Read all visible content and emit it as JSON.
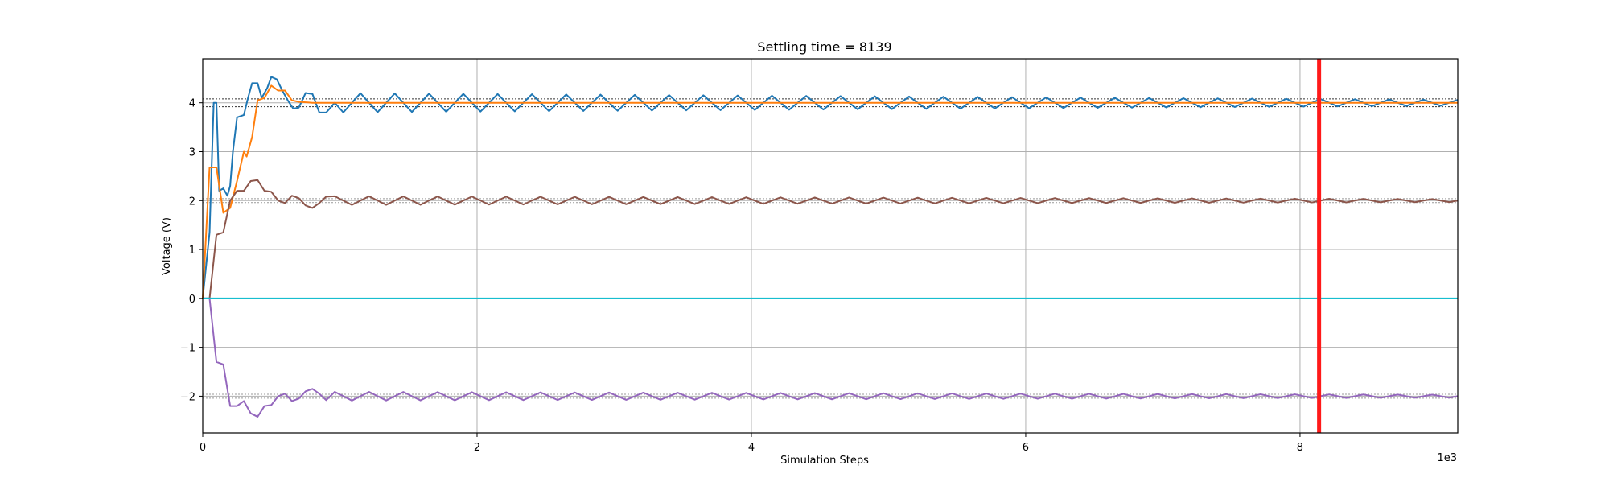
{
  "chart_data": {
    "type": "line",
    "title": "Settling time = 8139",
    "xlabel": "Simulation Steps",
    "ylabel": "Voltage (V)",
    "x_offset_label": "1e3",
    "xlim": [
      0,
      9.15
    ],
    "ylim": [
      -2.75,
      4.9
    ],
    "x_ticks": [
      0,
      2,
      4,
      6,
      8
    ],
    "x_tick_labels": [
      "0",
      "2",
      "4",
      "6",
      "8"
    ],
    "y_ticks": [
      -2,
      -1,
      0,
      1,
      2,
      3,
      4
    ],
    "y_tick_labels": [
      "−2",
      "−1",
      "0",
      "1",
      "2",
      "3",
      "4"
    ],
    "grid": true,
    "legend": "none",
    "settling_marker": {
      "x": 8.139,
      "color": "#ff1a1a"
    },
    "tolerance_bands": [
      {
        "center": 4,
        "lower": 3.92,
        "upper": 4.08,
        "color": "#333333"
      },
      {
        "center": 2,
        "lower": 1.96,
        "upper": 2.04,
        "color": "#999999"
      },
      {
        "center": -2,
        "lower": -2.04,
        "upper": -1.96,
        "color": "#999999"
      }
    ],
    "series": [
      {
        "color": "#1f77b4",
        "points": [
          [
            0,
            0
          ],
          [
            0.05,
            1.35
          ],
          [
            0.08,
            4.0
          ],
          [
            0.1,
            4.0
          ],
          [
            0.12,
            2.2
          ],
          [
            0.15,
            2.25
          ],
          [
            0.18,
            2.1
          ],
          [
            0.2,
            2.3
          ],
          [
            0.22,
            3.0
          ],
          [
            0.25,
            3.7
          ],
          [
            0.3,
            3.75
          ],
          [
            0.33,
            4.1
          ],
          [
            0.36,
            4.4
          ],
          [
            0.4,
            4.4
          ],
          [
            0.43,
            4.1
          ],
          [
            0.47,
            4.3
          ],
          [
            0.5,
            4.53
          ],
          [
            0.54,
            4.48
          ],
          [
            0.58,
            4.25
          ],
          [
            0.62,
            4.05
          ],
          [
            0.66,
            3.88
          ],
          [
            0.7,
            3.9
          ],
          [
            0.75,
            4.2
          ],
          [
            0.8,
            4.18
          ],
          [
            0.85,
            3.8
          ],
          [
            0.9,
            3.8
          ]
        ],
        "oscillation": {
          "center": 4.0,
          "amplitude_start": 0.2,
          "amplitude_end": 0.06,
          "period": 0.25,
          "phase": 0.5,
          "x_start": 0.9,
          "x_end": 9.15
        }
      },
      {
        "color": "#ff7f0e",
        "points": [
          [
            0,
            0
          ],
          [
            0.05,
            2.68
          ],
          [
            0.1,
            2.68
          ],
          [
            0.15,
            1.75
          ],
          [
            0.2,
            1.85
          ],
          [
            0.25,
            2.4
          ],
          [
            0.3,
            3.0
          ],
          [
            0.32,
            2.9
          ],
          [
            0.36,
            3.3
          ],
          [
            0.4,
            4.05
          ],
          [
            0.45,
            4.1
          ],
          [
            0.5,
            4.35
          ],
          [
            0.55,
            4.25
          ],
          [
            0.6,
            4.25
          ],
          [
            0.65,
            4.05
          ],
          [
            0.7,
            4.02
          ],
          [
            0.8,
            4.0
          ],
          [
            1.2,
            4.0
          ],
          [
            9.15,
            4.0
          ]
        ],
        "oscillation": null
      },
      {
        "color": "#8c564b",
        "points": [
          [
            0,
            0
          ],
          [
            0.05,
            0
          ],
          [
            0.1,
            1.3
          ],
          [
            0.15,
            1.35
          ],
          [
            0.2,
            2.0
          ],
          [
            0.25,
            2.2
          ],
          [
            0.3,
            2.2
          ],
          [
            0.35,
            2.4
          ],
          [
            0.4,
            2.42
          ],
          [
            0.45,
            2.2
          ],
          [
            0.5,
            2.18
          ],
          [
            0.55,
            2.0
          ],
          [
            0.6,
            1.95
          ],
          [
            0.65,
            2.1
          ],
          [
            0.7,
            2.05
          ],
          [
            0.75,
            1.9
          ],
          [
            0.8,
            1.85
          ],
          [
            0.85,
            1.95
          ],
          [
            0.9,
            2.08
          ]
        ],
        "oscillation": {
          "center": 2.0,
          "amplitude_start": 0.09,
          "amplitude_end": 0.03,
          "period": 0.25,
          "phase": 0.0,
          "x_start": 0.9,
          "x_end": 9.15
        }
      },
      {
        "color": "#9467bd",
        "points": [
          [
            0,
            0
          ],
          [
            0.05,
            0
          ],
          [
            0.1,
            -1.3
          ],
          [
            0.15,
            -1.35
          ],
          [
            0.2,
            -2.2
          ],
          [
            0.25,
            -2.2
          ],
          [
            0.3,
            -2.1
          ],
          [
            0.35,
            -2.35
          ],
          [
            0.4,
            -2.42
          ],
          [
            0.45,
            -2.2
          ],
          [
            0.5,
            -2.18
          ],
          [
            0.55,
            -2.0
          ],
          [
            0.6,
            -1.95
          ],
          [
            0.65,
            -2.1
          ],
          [
            0.7,
            -2.05
          ],
          [
            0.75,
            -1.9
          ],
          [
            0.8,
            -1.85
          ],
          [
            0.85,
            -1.95
          ],
          [
            0.9,
            -2.08
          ]
        ],
        "oscillation": {
          "center": -2.0,
          "amplitude_start": 0.09,
          "amplitude_end": 0.03,
          "period": 0.25,
          "phase": 0.0,
          "x_start": 0.9,
          "x_end": 9.15
        }
      },
      {
        "color": "#17becf",
        "points": [
          [
            0,
            0
          ],
          [
            9.15,
            0
          ]
        ],
        "oscillation": null
      }
    ]
  }
}
